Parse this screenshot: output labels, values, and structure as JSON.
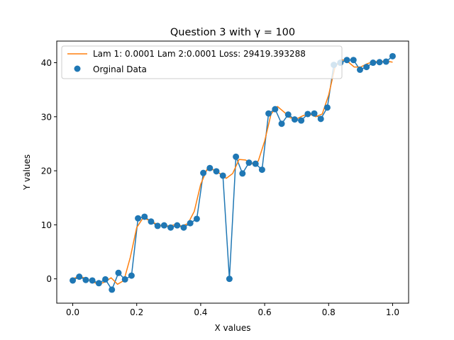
{
  "chart_data": {
    "type": "line",
    "title": "Question 3 with γ = 100",
    "xlabel": "X values",
    "ylabel": "Y values",
    "xlim": [
      -0.05,
      1.05
    ],
    "ylim": [
      -4.5,
      44
    ],
    "xticks": [
      "0.0",
      "0.2",
      "0.4",
      "0.6",
      "0.8",
      "1.0"
    ],
    "yticks": [
      "0",
      "10",
      "20",
      "30",
      "40"
    ],
    "grid": false,
    "legend_placement": "top-left",
    "series": [
      {
        "name": "Orginal Data",
        "kind": "scatter-with-line",
        "color": "#1f77b4",
        "x": [
          0.0,
          0.0204,
          0.0408,
          0.0612,
          0.0816,
          0.102,
          0.1224,
          0.1429,
          0.1633,
          0.1837,
          0.2041,
          0.2245,
          0.2449,
          0.2653,
          0.2857,
          0.3061,
          0.3265,
          0.3469,
          0.3673,
          0.3878,
          0.4082,
          0.4286,
          0.449,
          0.4694,
          0.4898,
          0.5102,
          0.5306,
          0.551,
          0.5714,
          0.5918,
          0.6122,
          0.6327,
          0.6531,
          0.6735,
          0.6939,
          0.7143,
          0.7347,
          0.7551,
          0.7755,
          0.7959,
          0.8163,
          0.8367,
          0.8571,
          0.8776,
          0.898,
          0.9184,
          0.9388,
          0.9592,
          0.9796,
          1.0
        ],
        "y": [
          -0.3,
          0.4,
          -0.2,
          -0.3,
          -0.8,
          -0.1,
          -2.0,
          1.1,
          -0.1,
          0.6,
          11.2,
          11.5,
          10.6,
          9.8,
          9.9,
          9.5,
          9.9,
          9.5,
          10.3,
          11.1,
          19.6,
          20.5,
          19.9,
          19.1,
          0.0,
          22.6,
          19.5,
          21.5,
          21.3,
          20.2,
          30.6,
          31.4,
          28.7,
          30.4,
          29.5,
          29.3,
          30.5,
          30.6,
          29.6,
          31.7,
          39.6,
          40.0,
          40.5,
          40.5,
          38.7,
          39.2,
          40.0,
          40.1,
          40.2,
          41.2
        ]
      },
      {
        "name": "Lam 1: 0.0001 Lam 2:0.0001 Loss: 29419.393288",
        "kind": "line",
        "color": "#ff7f0e",
        "x": [
          0.0,
          0.02,
          0.04,
          0.06,
          0.08,
          0.1,
          0.12,
          0.14,
          0.16,
          0.18,
          0.2,
          0.22,
          0.24,
          0.26,
          0.28,
          0.3,
          0.32,
          0.34,
          0.36,
          0.38,
          0.4,
          0.42,
          0.44,
          0.46,
          0.48,
          0.5,
          0.52,
          0.54,
          0.56,
          0.58,
          0.6,
          0.62,
          0.64,
          0.66,
          0.68,
          0.7,
          0.72,
          0.74,
          0.76,
          0.78,
          0.8,
          0.82,
          0.84,
          0.86,
          0.88,
          0.9,
          0.92,
          0.94,
          0.96,
          0.98,
          1.0
        ],
        "y": [
          0.0,
          0.5,
          0.1,
          -0.5,
          -1.0,
          -0.6,
          0.2,
          -1.0,
          -0.3,
          4.0,
          9.5,
          11.3,
          10.8,
          10.2,
          9.8,
          9.8,
          10.0,
          9.8,
          10.2,
          12.5,
          17.5,
          20.3,
          20.2,
          19.5,
          18.6,
          19.5,
          22.1,
          22.0,
          21.3,
          21.8,
          25.5,
          30.5,
          31.9,
          30.9,
          29.8,
          29.6,
          30.2,
          30.5,
          30.0,
          30.5,
          34.0,
          39.2,
          40.6,
          40.2,
          39.2,
          39.2,
          39.8,
          40.2,
          40.2,
          40.3,
          40.1
        ]
      }
    ]
  }
}
